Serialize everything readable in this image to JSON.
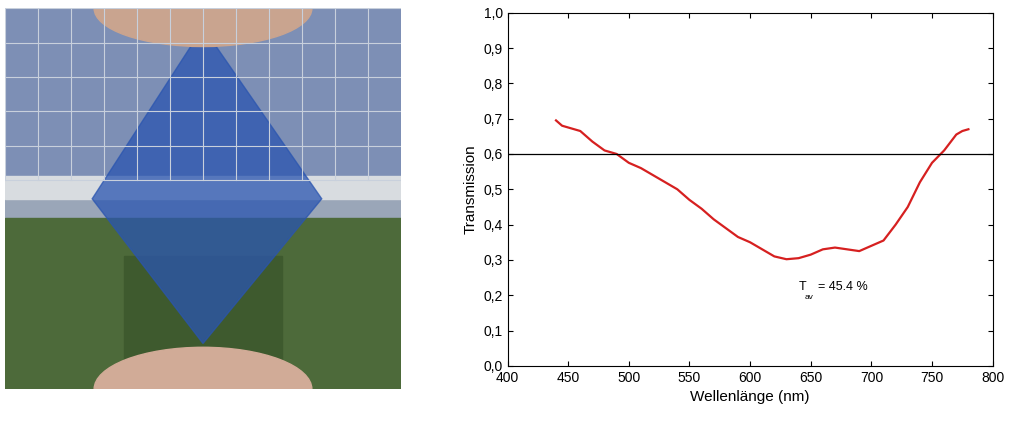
{
  "chart_data": {
    "type": "line",
    "xlabel": "Wellenlänge (nm)",
    "ylabel": "Transmission",
    "annotation": {
      "text": "T",
      "subscript": "av",
      "suffix": "= 45.4 %"
    },
    "reference_line": 0.6,
    "x": [
      440,
      445,
      450,
      460,
      470,
      480,
      490,
      500,
      510,
      520,
      530,
      540,
      550,
      560,
      570,
      580,
      590,
      600,
      610,
      620,
      630,
      640,
      650,
      660,
      670,
      680,
      690,
      700,
      710,
      720,
      730,
      740,
      750,
      760,
      770,
      775,
      780
    ],
    "series": [
      {
        "name": "Transmission",
        "color": "#d62020",
        "line_style": "solid",
        "values": [
          0.695,
          0.68,
          0.675,
          0.665,
          0.635,
          0.61,
          0.6,
          0.575,
          0.56,
          0.54,
          0.52,
          0.5,
          0.47,
          0.445,
          0.415,
          0.39,
          0.365,
          0.35,
          0.33,
          0.31,
          0.302,
          0.305,
          0.315,
          0.33,
          0.335,
          0.33,
          0.325,
          0.34,
          0.355,
          0.4,
          0.45,
          0.52,
          0.575,
          0.61,
          0.655,
          0.665,
          0.67
        ]
      }
    ],
    "xlim": [
      400,
      800
    ],
    "xticks": [
      400,
      450,
      500,
      550,
      600,
      650,
      700,
      750,
      800
    ],
    "ylim": [
      0,
      1.0
    ],
    "yticks": [
      {
        "value": 0,
        "label": "0,0"
      },
      {
        "value": 0.1,
        "label": "0,1"
      },
      {
        "value": 0.2,
        "label": "0,2"
      },
      {
        "value": 0.3,
        "label": "0,3"
      },
      {
        "value": 0.4,
        "label": "0,4"
      },
      {
        "value": 0.5,
        "label": "0,5"
      },
      {
        "value": 0.6,
        "label": "0,6"
      },
      {
        "value": 0.7,
        "label": "0,7"
      },
      {
        "value": 0.8,
        "label": "0,8"
      },
      {
        "value": 0.9,
        "label": "0,9"
      },
      {
        "value": 1.0,
        "label": "1,0"
      }
    ],
    "grid": false
  }
}
